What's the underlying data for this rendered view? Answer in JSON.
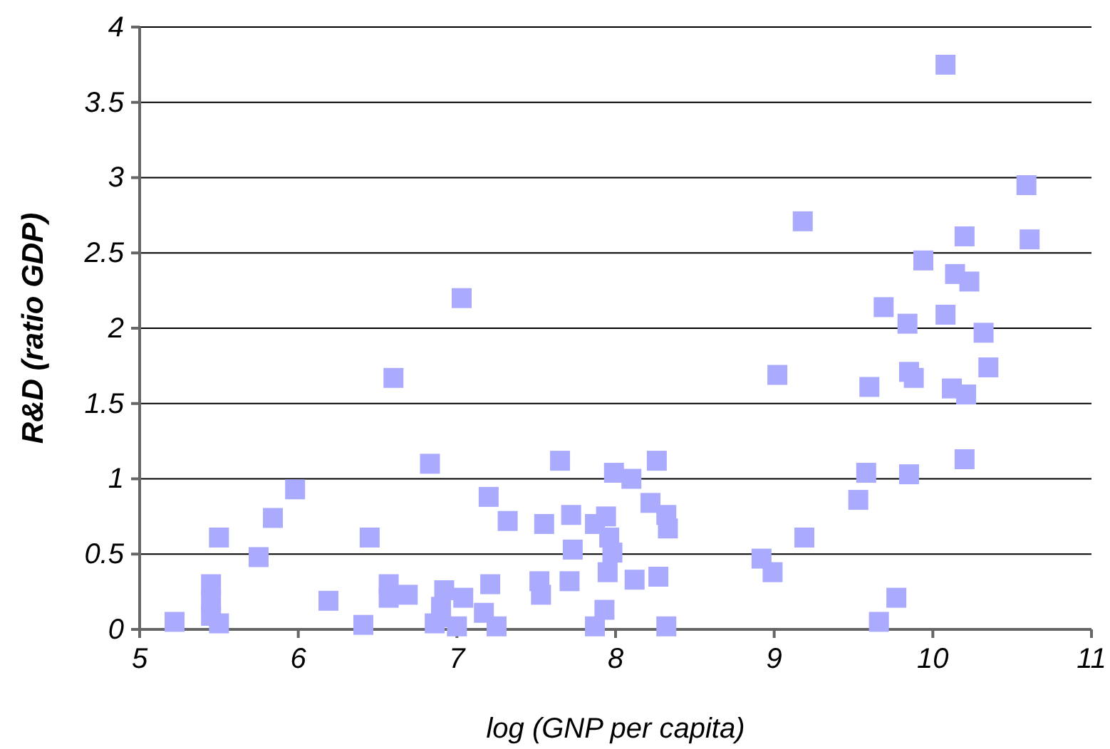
{
  "chart_data": {
    "type": "scatter",
    "xlabel": "log (GNP per capita)",
    "ylabel": "R&D (ratio GDP)",
    "xlim": [
      5,
      11
    ],
    "ylim": [
      0,
      4
    ],
    "xticks": [
      5,
      6,
      7,
      8,
      9,
      10,
      11
    ],
    "yticks": [
      0,
      0.5,
      1,
      1.5,
      2,
      2.5,
      3,
      3.5,
      4
    ],
    "grid": "y",
    "marker": "square",
    "series": [
      {
        "color": "#aaaaff",
        "x": [
          5.22,
          5.45,
          5.45,
          5.45,
          5.5,
          5.5,
          5.75,
          5.84,
          5.98,
          6.19,
          6.41,
          6.45,
          6.6,
          6.57,
          6.57,
          6.69,
          6.86,
          6.83,
          6.92,
          6.9,
          6.9,
          7.0,
          7.03,
          7.04,
          7.17,
          7.2,
          7.21,
          7.25,
          7.32,
          7.52,
          7.53,
          7.55,
          7.65,
          7.71,
          7.72,
          7.73,
          7.87,
          7.87,
          7.93,
          7.95,
          7.94,
          7.96,
          7.98,
          7.99,
          8.1,
          8.12,
          8.22,
          8.26,
          8.27,
          8.32,
          8.32,
          8.33,
          8.92,
          8.99,
          9.02,
          9.18,
          9.19,
          9.53,
          9.58,
          9.6,
          9.66,
          9.69,
          9.77,
          9.84,
          9.85,
          9.85,
          9.88,
          9.94,
          10.08,
          10.08,
          10.12,
          10.14,
          10.2,
          10.2,
          10.21,
          10.23,
          10.32,
          10.35,
          10.59,
          10.61
        ],
        "values": [
          0.05,
          0.3,
          0.19,
          0.09,
          0.04,
          0.61,
          0.48,
          0.74,
          0.93,
          0.19,
          0.03,
          0.61,
          1.67,
          0.3,
          0.21,
          0.23,
          0.04,
          1.1,
          0.26,
          0.15,
          0.08,
          0.02,
          2.2,
          0.21,
          0.11,
          0.88,
          0.3,
          0.02,
          0.72,
          0.32,
          0.23,
          0.7,
          1.12,
          0.32,
          0.76,
          0.53,
          0.02,
          0.7,
          0.13,
          0.38,
          0.75,
          0.61,
          0.51,
          1.04,
          1.0,
          0.33,
          0.84,
          1.12,
          0.35,
          0.02,
          0.76,
          0.67,
          0.47,
          0.38,
          1.69,
          2.71,
          0.61,
          0.86,
          1.04,
          1.61,
          0.05,
          2.14,
          0.21,
          2.03,
          1.03,
          1.71,
          1.67,
          2.45,
          3.75,
          2.09,
          1.6,
          2.36,
          1.13,
          2.61,
          1.56,
          2.31,
          1.97,
          1.74,
          2.95,
          2.59
        ]
      }
    ]
  }
}
